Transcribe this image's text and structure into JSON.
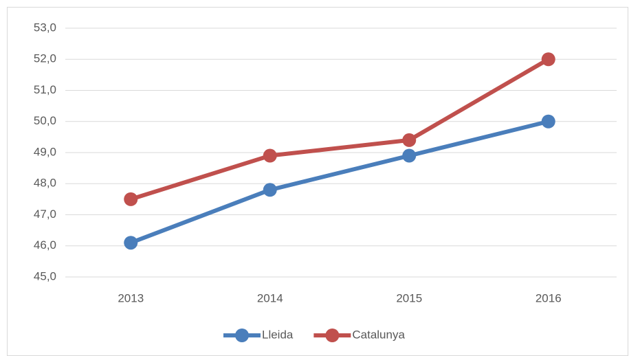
{
  "chart_data": {
    "type": "line",
    "categories": [
      "2013",
      "2014",
      "2015",
      "2016"
    ],
    "series": [
      {
        "name": "Lleida",
        "color": "#4a7ebb",
        "values": [
          46.1,
          47.8,
          48.9,
          50.0
        ]
      },
      {
        "name": "Catalunya",
        "color": "#c0504d",
        "values": [
          47.5,
          48.9,
          49.4,
          52.0
        ]
      }
    ],
    "ylim": [
      45,
      53
    ],
    "yticks": [
      {
        "value": 45,
        "label": "45,0"
      },
      {
        "value": 46,
        "label": "46,0"
      },
      {
        "value": 47,
        "label": "47,0"
      },
      {
        "value": 48,
        "label": "48,0"
      },
      {
        "value": 49,
        "label": "49,0"
      },
      {
        "value": 50,
        "label": "50,0"
      },
      {
        "value": 51,
        "label": "51,0"
      },
      {
        "value": 52,
        "label": "52,0"
      },
      {
        "value": 53,
        "label": "53,0"
      }
    ],
    "grid": true,
    "legend": "bottom"
  }
}
